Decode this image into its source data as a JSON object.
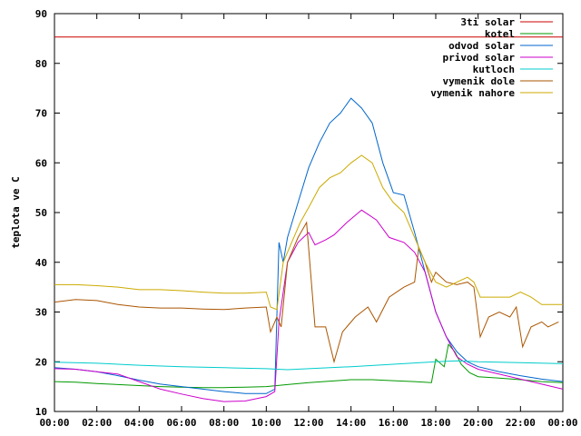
{
  "chart_data": {
    "type": "line",
    "title": "",
    "xlabel": "",
    "ylabel": "teplota ve C",
    "xlim": [
      0,
      24
    ],
    "ylim": [
      10,
      90
    ],
    "x_ticks": [
      "00:00",
      "02:00",
      "04:00",
      "06:00",
      "08:00",
      "10:00",
      "12:00",
      "14:00",
      "16:00",
      "18:00",
      "20:00",
      "22:00",
      "00:00"
    ],
    "y_ticks": [
      "10",
      "20",
      "30",
      "40",
      "50",
      "60",
      "70",
      "80",
      "90"
    ],
    "grid": false,
    "legend_position": "top-right",
    "series": [
      {
        "name": "3ti solar",
        "color": "#cc0000",
        "points": [
          [
            0,
            85.3
          ],
          [
            24,
            85.3
          ]
        ]
      },
      {
        "name": "kotel",
        "color": "#009900",
        "points": [
          [
            0,
            16
          ],
          [
            1,
            15.9
          ],
          [
            2,
            15.6
          ],
          [
            3,
            15.4
          ],
          [
            4,
            15.2
          ],
          [
            5,
            15
          ],
          [
            6,
            14.9
          ],
          [
            7,
            14.8
          ],
          [
            8,
            14.8
          ],
          [
            9,
            14.9
          ],
          [
            10,
            15
          ],
          [
            11,
            15.4
          ],
          [
            12,
            15.8
          ],
          [
            13,
            16.1
          ],
          [
            14,
            16.4
          ],
          [
            15,
            16.4
          ],
          [
            16,
            16.2
          ],
          [
            17,
            16.0
          ],
          [
            17.8,
            15.8
          ],
          [
            18.0,
            20.5
          ],
          [
            18.4,
            19.0
          ],
          [
            18.6,
            23.5
          ],
          [
            18.9,
            22.0
          ],
          [
            19.2,
            19.5
          ],
          [
            19.6,
            17.8
          ],
          [
            20,
            17
          ],
          [
            21,
            16.7
          ],
          [
            22,
            16.4
          ],
          [
            23,
            16
          ],
          [
            24,
            15.8
          ]
        ]
      },
      {
        "name": "odvod solar",
        "color": "#0066cc",
        "points": [
          [
            0,
            18.8
          ],
          [
            1,
            18.5
          ],
          [
            2,
            18
          ],
          [
            3,
            17.2
          ],
          [
            4,
            16.3
          ],
          [
            5,
            15.5
          ],
          [
            6,
            15
          ],
          [
            7,
            14.5
          ],
          [
            8,
            14
          ],
          [
            9,
            13.6
          ],
          [
            10,
            13.6
          ],
          [
            10.4,
            14.5
          ],
          [
            10.6,
            44
          ],
          [
            10.8,
            40
          ],
          [
            11.0,
            45
          ],
          [
            11.5,
            52
          ],
          [
            12,
            59
          ],
          [
            12.5,
            64
          ],
          [
            13,
            68
          ],
          [
            13.5,
            70
          ],
          [
            14,
            73
          ],
          [
            14.5,
            71
          ],
          [
            15,
            68
          ],
          [
            15.5,
            60
          ],
          [
            16,
            54
          ],
          [
            16.5,
            53.5
          ],
          [
            17,
            46
          ],
          [
            17.5,
            38
          ],
          [
            18,
            30
          ],
          [
            18.5,
            25
          ],
          [
            19,
            22
          ],
          [
            19.5,
            20
          ],
          [
            20,
            19
          ],
          [
            21,
            18
          ],
          [
            22,
            17.2
          ],
          [
            23,
            16.5
          ],
          [
            24,
            16
          ]
        ]
      },
      {
        "name": "privod solar",
        "color": "#cc00cc",
        "points": [
          [
            0,
            18.6
          ],
          [
            1,
            18.5
          ],
          [
            2,
            18
          ],
          [
            3,
            17.5
          ],
          [
            4,
            16
          ],
          [
            5,
            14.5
          ],
          [
            6,
            13.5
          ],
          [
            7,
            12.6
          ],
          [
            8,
            12
          ],
          [
            9,
            12.1
          ],
          [
            10,
            13
          ],
          [
            10.4,
            14
          ],
          [
            10.6,
            28
          ],
          [
            11.0,
            40
          ],
          [
            11.5,
            44
          ],
          [
            12,
            46
          ],
          [
            12.3,
            43.5
          ],
          [
            12.8,
            44.5
          ],
          [
            13.2,
            45.5
          ],
          [
            13.8,
            48
          ],
          [
            14.5,
            50.5
          ],
          [
            15.2,
            48.5
          ],
          [
            15.8,
            45
          ],
          [
            16.5,
            44
          ],
          [
            17,
            42
          ],
          [
            17.5,
            38
          ],
          [
            18,
            30
          ],
          [
            18.5,
            25
          ],
          [
            19,
            21
          ],
          [
            19.5,
            19.5
          ],
          [
            20,
            18.5
          ],
          [
            21,
            17.5
          ],
          [
            22,
            16.5
          ],
          [
            23,
            15.5
          ],
          [
            24,
            14.5
          ]
        ]
      },
      {
        "name": "kutloch",
        "color": "#00cccc",
        "points": [
          [
            0,
            19.9
          ],
          [
            2,
            19.7
          ],
          [
            4,
            19.3
          ],
          [
            6,
            19
          ],
          [
            8,
            18.8
          ],
          [
            10,
            18.6
          ],
          [
            11,
            18.4
          ],
          [
            12,
            18.6
          ],
          [
            14,
            19
          ],
          [
            16,
            19.5
          ],
          [
            18,
            20
          ],
          [
            19,
            20.2
          ],
          [
            20,
            20
          ],
          [
            22,
            19.8
          ],
          [
            24,
            19.6
          ]
        ]
      },
      {
        "name": "vymenik dole",
        "color": "#aa5500",
        "points": [
          [
            0,
            32
          ],
          [
            1,
            32.5
          ],
          [
            2,
            32.3
          ],
          [
            3,
            31.5
          ],
          [
            4,
            31
          ],
          [
            5,
            30.8
          ],
          [
            6,
            30.8
          ],
          [
            7,
            30.6
          ],
          [
            8,
            30.5
          ],
          [
            9,
            30.8
          ],
          [
            10,
            31
          ],
          [
            10.2,
            26
          ],
          [
            10.5,
            29
          ],
          [
            10.7,
            27
          ],
          [
            11.0,
            40
          ],
          [
            11.5,
            45
          ],
          [
            11.9,
            48
          ],
          [
            12.3,
            27
          ],
          [
            12.8,
            27
          ],
          [
            13.2,
            20
          ],
          [
            13.6,
            26
          ],
          [
            14.2,
            29
          ],
          [
            14.8,
            31
          ],
          [
            15.2,
            28
          ],
          [
            15.8,
            33
          ],
          [
            16.5,
            35
          ],
          [
            17,
            36
          ],
          [
            17.2,
            43
          ],
          [
            17.5,
            40
          ],
          [
            17.8,
            36
          ],
          [
            18.0,
            38
          ],
          [
            18.5,
            36
          ],
          [
            19,
            35.5
          ],
          [
            19.5,
            36
          ],
          [
            19.8,
            35
          ],
          [
            20.1,
            25
          ],
          [
            20.5,
            29
          ],
          [
            21,
            30
          ],
          [
            21.5,
            29
          ],
          [
            21.8,
            31
          ],
          [
            22.1,
            23
          ],
          [
            22.5,
            27
          ],
          [
            23,
            28
          ],
          [
            23.3,
            27
          ],
          [
            23.8,
            28
          ]
        ]
      },
      {
        "name": "vymenik nahore",
        "color": "#ccaa00",
        "points": [
          [
            0,
            35.5
          ],
          [
            1,
            35.5
          ],
          [
            2,
            35.3
          ],
          [
            3,
            35
          ],
          [
            4,
            34.5
          ],
          [
            5,
            34.5
          ],
          [
            6,
            34.3
          ],
          [
            7,
            34
          ],
          [
            8,
            33.8
          ],
          [
            9,
            33.8
          ],
          [
            10,
            34
          ],
          [
            10.2,
            31
          ],
          [
            10.5,
            30.5
          ],
          [
            10.8,
            40
          ],
          [
            11.2,
            44
          ],
          [
            11.6,
            48
          ],
          [
            12,
            51
          ],
          [
            12.5,
            55
          ],
          [
            13,
            57
          ],
          [
            13.5,
            58
          ],
          [
            14,
            60
          ],
          [
            14.5,
            61.5
          ],
          [
            15,
            60
          ],
          [
            15.5,
            55
          ],
          [
            16,
            52
          ],
          [
            16.5,
            50
          ],
          [
            17,
            45
          ],
          [
            17.5,
            40
          ],
          [
            18,
            36
          ],
          [
            18.5,
            35
          ],
          [
            19,
            36
          ],
          [
            19.5,
            37
          ],
          [
            19.8,
            36
          ],
          [
            20.1,
            33
          ],
          [
            21,
            33
          ],
          [
            21.5,
            33
          ],
          [
            22,
            34
          ],
          [
            22.5,
            33
          ],
          [
            23,
            31.5
          ],
          [
            24,
            31.5
          ]
        ]
      }
    ]
  }
}
